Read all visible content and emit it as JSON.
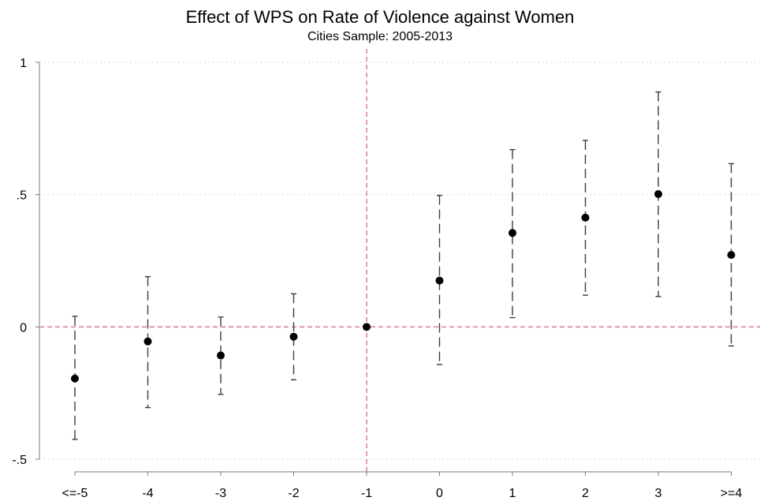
{
  "chart_data": {
    "type": "scatter",
    "title": "Effect of WPS on Rate of Violence against Women",
    "subtitle": "Cities Sample: 2005-2013",
    "xlabel": "",
    "ylabel": "",
    "categories": [
      "<=-5",
      "-4",
      "-3",
      "-2",
      "-1",
      "0",
      "1",
      "2",
      "3",
      ">=4"
    ],
    "series": [
      {
        "estimate": [
          -0.195,
          -0.055,
          -0.108,
          -0.037,
          0.0,
          0.175,
          0.355,
          0.413,
          0.502,
          0.272
        ],
        "ci_lower": [
          -0.425,
          -0.305,
          -0.255,
          -0.2,
          0.0,
          -0.142,
          0.035,
          0.12,
          0.115,
          -0.072
        ],
        "ci_upper": [
          0.04,
          0.19,
          0.037,
          0.125,
          0.0,
          0.497,
          0.67,
          0.705,
          0.888,
          0.617
        ]
      }
    ],
    "ylim": [
      -0.5,
      1
    ],
    "yticks": [
      -0.5,
      0,
      0.5,
      1
    ],
    "ytick_labels": [
      "-.5",
      "0",
      ".5",
      "1"
    ],
    "reference_lines": {
      "y": 0,
      "x_category": "-1",
      "color": "#d87aa4",
      "style": "dashed"
    },
    "grid": "horizontal dotted",
    "colors": {
      "point": "#000000",
      "ci": "#3c3c3c",
      "grid": "#c8c8c8",
      "reference": "#d87aa4",
      "axis": "#7a7a7a"
    }
  }
}
